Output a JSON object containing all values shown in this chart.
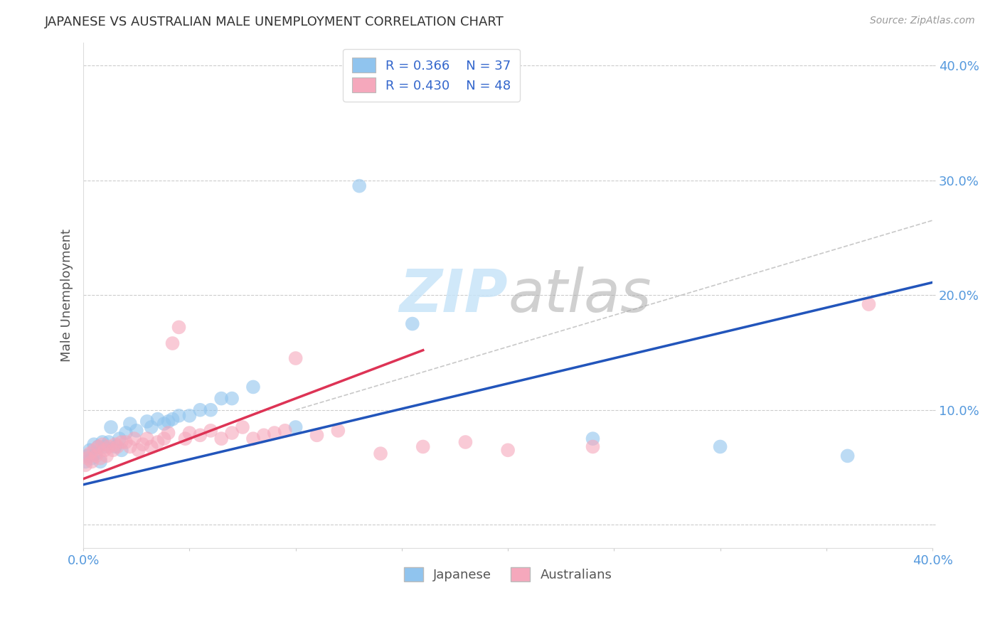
{
  "title": "JAPANESE VS AUSTRALIAN MALE UNEMPLOYMENT CORRELATION CHART",
  "source": "Source: ZipAtlas.com",
  "ylabel": "Male Unemployment",
  "xlim": [
    0.0,
    0.4
  ],
  "ylim": [
    -0.02,
    0.42
  ],
  "yticks": [
    0.0,
    0.1,
    0.2,
    0.3,
    0.4
  ],
  "ytick_labels": [
    "",
    "10.0%",
    "20.0%",
    "30.0%",
    "40.0%"
  ],
  "xtick_positions": [
    0.0,
    0.05,
    0.1,
    0.15,
    0.2,
    0.25,
    0.3,
    0.35,
    0.4
  ],
  "japanese_R": 0.366,
  "japanese_N": 37,
  "australian_R": 0.43,
  "australian_N": 48,
  "japanese_color": "#90C4EE",
  "australian_color": "#F5A8BC",
  "japanese_line_color": "#2255BB",
  "australian_line_color": "#DD3355",
  "watermark_color": "#C8E4F8",
  "background_color": "#FFFFFF",
  "grid_color": "#CCCCCC",
  "japanese_points_x": [
    0.001,
    0.002,
    0.003,
    0.004,
    0.005,
    0.006,
    0.007,
    0.008,
    0.009,
    0.01,
    0.012,
    0.013,
    0.015,
    0.017,
    0.018,
    0.02,
    0.022,
    0.025,
    0.03,
    0.032,
    0.035,
    0.038,
    0.04,
    0.042,
    0.045,
    0.05,
    0.055,
    0.06,
    0.065,
    0.07,
    0.08,
    0.1,
    0.13,
    0.155,
    0.24,
    0.3,
    0.36
  ],
  "japanese_points_y": [
    0.055,
    0.06,
    0.065,
    0.058,
    0.07,
    0.062,
    0.068,
    0.055,
    0.072,
    0.068,
    0.072,
    0.085,
    0.068,
    0.075,
    0.065,
    0.08,
    0.088,
    0.082,
    0.09,
    0.085,
    0.092,
    0.088,
    0.09,
    0.092,
    0.095,
    0.095,
    0.1,
    0.1,
    0.11,
    0.11,
    0.12,
    0.085,
    0.295,
    0.175,
    0.075,
    0.068,
    0.06
  ],
  "australian_points_x": [
    0.001,
    0.002,
    0.003,
    0.004,
    0.005,
    0.006,
    0.007,
    0.008,
    0.009,
    0.01,
    0.011,
    0.012,
    0.014,
    0.015,
    0.016,
    0.018,
    0.02,
    0.022,
    0.024,
    0.026,
    0.028,
    0.03,
    0.032,
    0.035,
    0.038,
    0.04,
    0.042,
    0.045,
    0.048,
    0.05,
    0.055,
    0.06,
    0.065,
    0.07,
    0.075,
    0.08,
    0.085,
    0.09,
    0.095,
    0.1,
    0.11,
    0.12,
    0.14,
    0.16,
    0.18,
    0.2,
    0.24,
    0.37
  ],
  "australian_points_y": [
    0.052,
    0.058,
    0.062,
    0.055,
    0.065,
    0.06,
    0.068,
    0.058,
    0.07,
    0.065,
    0.06,
    0.068,
    0.065,
    0.07,
    0.068,
    0.072,
    0.072,
    0.068,
    0.075,
    0.065,
    0.07,
    0.075,
    0.068,
    0.072,
    0.075,
    0.08,
    0.158,
    0.172,
    0.075,
    0.08,
    0.078,
    0.082,
    0.075,
    0.08,
    0.085,
    0.075,
    0.078,
    0.08,
    0.082,
    0.145,
    0.078,
    0.082,
    0.062,
    0.068,
    0.072,
    0.065,
    0.068,
    0.192
  ]
}
